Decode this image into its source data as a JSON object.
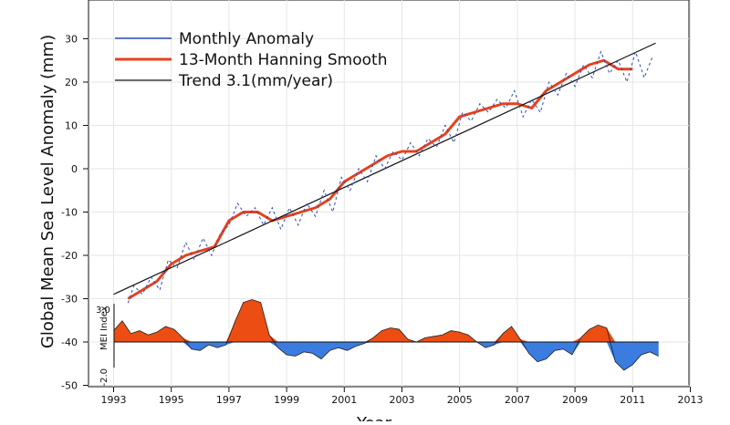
{
  "chart_data": {
    "type": "line",
    "xlabel": "Year",
    "ylabel": "Global Mean Sea Level Anomaly (mm)",
    "xlim": [
      1992.5,
      2013
    ],
    "ylim": [
      -50,
      35
    ],
    "x_ticks": [
      1993,
      1995,
      1997,
      1999,
      2001,
      2003,
      2005,
      2007,
      2009,
      2011,
      2013
    ],
    "y_ticks": [
      -50,
      -40,
      -30,
      -20,
      -10,
      0,
      10,
      20,
      30
    ],
    "grid": true,
    "legend_position": "top-left",
    "legend": [
      "Monthly Anomaly",
      "13-Month Hanning Smooth",
      "Trend 3.1(mm/year)"
    ],
    "colors": {
      "monthly": "#2c4fb5",
      "smooth": "#e8401c",
      "trend": "#111111",
      "mei_positive": "#ec4d12",
      "mei_negative": "#3b7ce0"
    },
    "series": [
      {
        "name": "13-Month Hanning Smooth",
        "x": [
          1993.5,
          1994.0,
          1994.5,
          1995.0,
          1995.5,
          1996.0,
          1996.5,
          1997.0,
          1997.5,
          1998.0,
          1998.5,
          1999.0,
          1999.5,
          2000.0,
          2000.5,
          2001.0,
          2001.5,
          2002.0,
          2002.5,
          2003.0,
          2003.5,
          2004.0,
          2004.5,
          2005.0,
          2005.5,
          2006.0,
          2006.5,
          2007.0,
          2007.5,
          2008.0,
          2008.5,
          2009.0,
          2009.5,
          2010.0,
          2010.5,
          2011.0
        ],
        "y": [
          -30,
          -28,
          -26,
          -22,
          -20,
          -19,
          -18,
          -12,
          -10,
          -10,
          -12,
          -11,
          -10,
          -9,
          -7,
          -3,
          -1,
          1,
          3,
          4,
          4,
          6,
          8,
          12,
          13,
          14,
          15,
          15,
          14,
          18,
          20,
          22,
          24,
          25,
          23,
          23
        ]
      },
      {
        "name": "Trend 3.1(mm/year)",
        "x": [
          1993.0,
          2011.8
        ],
        "y": [
          -29,
          29
        ]
      },
      {
        "name": "Monthly Anomaly",
        "x": [
          1993.5,
          1993.7,
          1994.0,
          1994.3,
          1994.6,
          1994.9,
          1995.2,
          1995.5,
          1995.8,
          1996.1,
          1996.4,
          1996.7,
          1997.0,
          1997.3,
          1997.6,
          1997.9,
          1998.2,
          1998.5,
          1998.8,
          1999.1,
          1999.4,
          1999.7,
          2000.0,
          2000.3,
          2000.6,
          2000.9,
          2001.2,
          2001.5,
          2001.8,
          2002.1,
          2002.4,
          2002.7,
          2003.0,
          2003.3,
          2003.6,
          2003.9,
          2004.2,
          2004.5,
          2004.8,
          2005.1,
          2005.4,
          2005.7,
          2006.0,
          2006.3,
          2006.6,
          2006.9,
          2007.2,
          2007.5,
          2007.8,
          2008.1,
          2008.4,
          2008.7,
          2009.0,
          2009.3,
          2009.6,
          2009.9,
          2010.2,
          2010.5,
          2010.8,
          2011.1,
          2011.4,
          2011.7
        ],
        "y": [
          -31,
          -27,
          -29,
          -25,
          -28,
          -21,
          -23,
          -17,
          -21,
          -16,
          -20,
          -15,
          -13,
          -8,
          -11,
          -9,
          -13,
          -9,
          -14,
          -9,
          -13,
          -8,
          -11,
          -5,
          -10,
          -2,
          -5,
          0,
          -3,
          3,
          0,
          4,
          2,
          6,
          3,
          7,
          5,
          10,
          6,
          13,
          11,
          15,
          13,
          16,
          14,
          18,
          12,
          16,
          13,
          20,
          17,
          22,
          19,
          24,
          21,
          27,
          22,
          25,
          20,
          27,
          21,
          26
        ]
      }
    ],
    "mei": {
      "label": "MEI Index",
      "max_label": "3.0",
      "min_label": "-2.0",
      "x": [
        1993.0,
        1993.3,
        1993.6,
        1993.9,
        1994.2,
        1994.5,
        1994.8,
        1995.1,
        1995.4,
        1995.7,
        1996.0,
        1996.3,
        1996.6,
        1996.9,
        1997.2,
        1997.5,
        1997.8,
        1998.1,
        1998.4,
        1998.7,
        1999.0,
        1999.3,
        1999.6,
        1999.9,
        2000.2,
        2000.5,
        2000.8,
        2001.1,
        2001.4,
        2001.7,
        2002.0,
        2002.3,
        2002.6,
        2002.9,
        2003.2,
        2003.5,
        2003.8,
        2004.1,
        2004.4,
        2004.7,
        2005.0,
        2005.3,
        2005.6,
        2005.9,
        2006.2,
        2006.5,
        2006.8,
        2007.1,
        2007.4,
        2007.7,
        2008.0,
        2008.3,
        2008.6,
        2008.9,
        2009.2,
        2009.5,
        2009.8,
        2010.1,
        2010.4,
        2010.7,
        2011.0,
        2011.3,
        2011.6,
        2011.9
      ],
      "values": [
        0.8,
        1.5,
        0.6,
        0.8,
        0.5,
        0.7,
        1.1,
        0.9,
        0.3,
        -0.5,
        -0.6,
        -0.2,
        -0.4,
        -0.2,
        1.4,
        2.8,
        3.0,
        2.8,
        0.5,
        -0.4,
        -0.9,
        -1.0,
        -0.7,
        -0.8,
        -1.2,
        -0.6,
        -0.4,
        -0.6,
        -0.3,
        -0.1,
        0.3,
        0.8,
        1.0,
        0.9,
        0.2,
        0.0,
        0.3,
        0.4,
        0.5,
        0.8,
        0.7,
        0.5,
        0.0,
        -0.4,
        -0.2,
        0.6,
        1.1,
        0.2,
        -0.8,
        -1.4,
        -1.2,
        -0.6,
        -0.5,
        -0.9,
        0.3,
        0.9,
        1.2,
        1.0,
        -1.4,
        -2.0,
        -1.6,
        -0.9,
        -0.7,
        -1.0
      ]
    }
  }
}
